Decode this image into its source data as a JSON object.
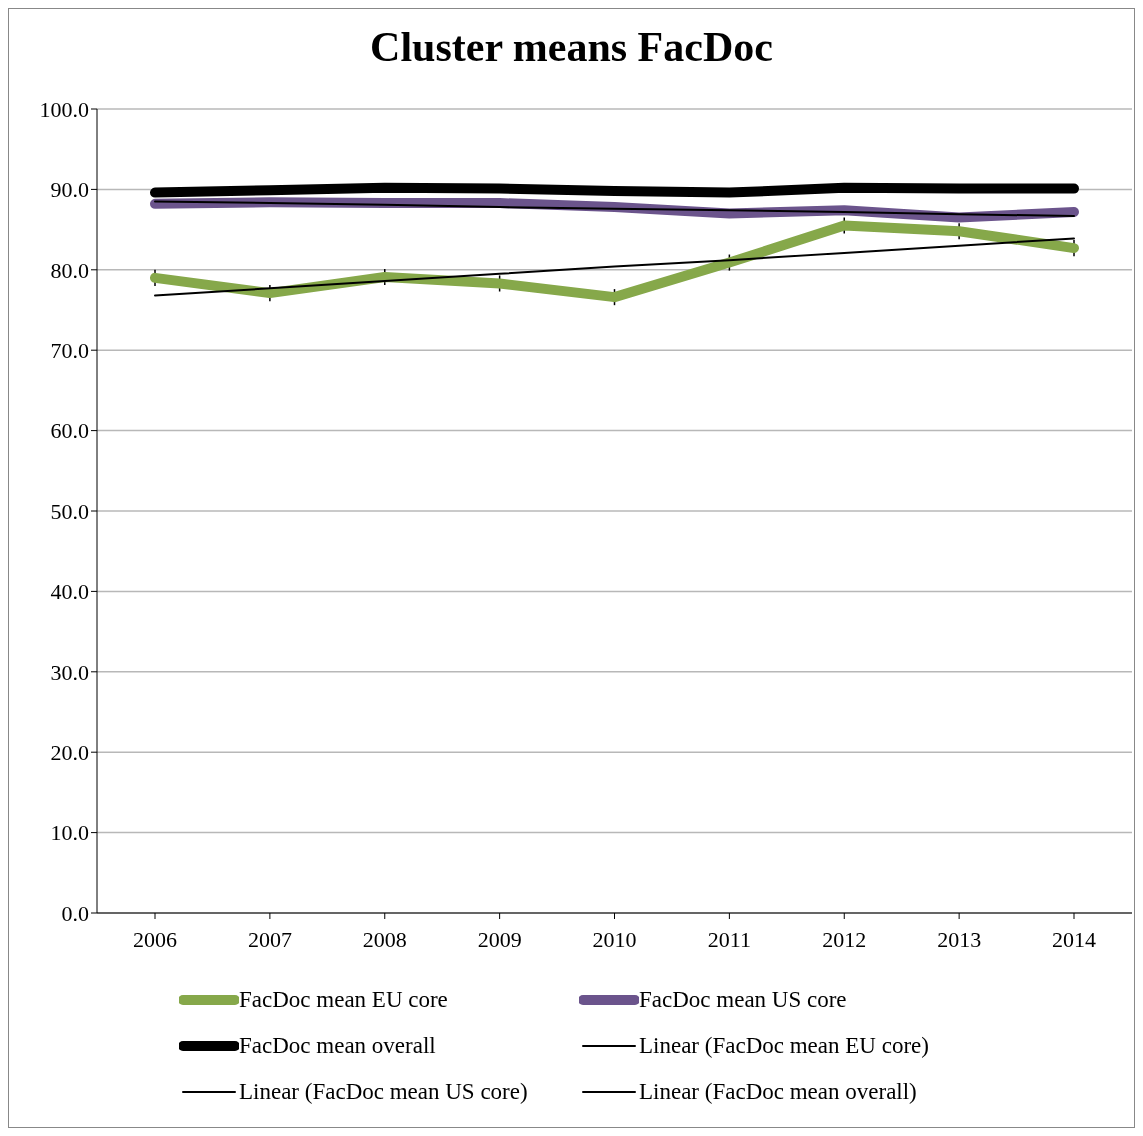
{
  "chart_data": {
    "type": "line",
    "title": "Cluster means FacDoc",
    "categories": [
      "2006",
      "2007",
      "2008",
      "2009",
      "2010",
      "2011",
      "2012",
      "2013",
      "2014"
    ],
    "series": [
      {
        "name": "FacDoc mean EU core",
        "color": "#86a84a",
        "values": [
          79.0,
          77.1,
          79.1,
          78.3,
          76.6,
          80.9,
          85.5,
          84.8,
          82.7
        ],
        "errors": [
          1.0,
          1.0,
          1.0,
          1.0,
          1.0,
          1.0,
          1.0,
          1.0,
          1.0
        ]
      },
      {
        "name": "FacDoc mean US core",
        "color": "#6b548c",
        "values": [
          88.2,
          88.4,
          88.3,
          88.3,
          87.8,
          87.0,
          87.4,
          86.5,
          87.2
        ]
      },
      {
        "name": "FacDoc mean overall",
        "color": "#000000",
        "values": [
          89.6,
          89.9,
          90.2,
          90.1,
          89.8,
          89.6,
          90.2,
          90.1,
          90.1
        ]
      },
      {
        "name": "Linear (FacDoc mean EU core)",
        "color": "#000000",
        "values": [
          76.8,
          77.7,
          78.6,
          79.5,
          80.4,
          81.2,
          82.1,
          83.0,
          83.9
        ]
      },
      {
        "name": "Linear (FacDoc mean US core)",
        "color": "#000000",
        "values": [
          88.5,
          88.3,
          88.1,
          87.8,
          87.6,
          87.4,
          87.2,
          86.9,
          86.7
        ]
      },
      {
        "name": "Linear (FacDoc mean overall)",
        "color": "#000000",
        "values": [
          null,
          null,
          null,
          null,
          null,
          null,
          null,
          null,
          null
        ]
      }
    ],
    "ylim": [
      0,
      100
    ],
    "yticks": [
      {
        "value": 0,
        "label": "0.0"
      },
      {
        "value": 10,
        "label": "10.0"
      },
      {
        "value": 20,
        "label": "20.0"
      },
      {
        "value": 30,
        "label": "30.0"
      },
      {
        "value": 40,
        "label": "40.0"
      },
      {
        "value": 50,
        "label": "50.0"
      },
      {
        "value": 60,
        "label": "60.0"
      },
      {
        "value": 70,
        "label": "70.0"
      },
      {
        "value": 80,
        "label": "80.0"
      },
      {
        "value": 90,
        "label": "90.0"
      },
      {
        "value": 100,
        "label": "100.0"
      }
    ],
    "grid": "y",
    "legend": "bottom",
    "marker": "none",
    "line_style": "solid"
  }
}
